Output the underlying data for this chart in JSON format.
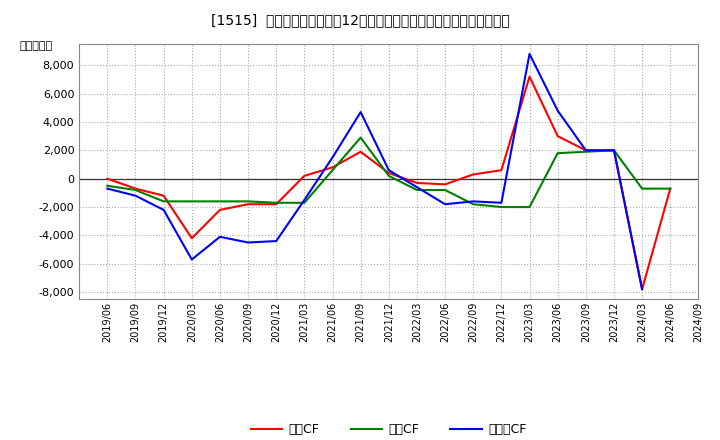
{
  "title": "[1515]  キャッシュフローの12か月移動合計の対前年同期増減額の推移",
  "ylabel": "（百万円）",
  "legend_labels": [
    "営業CF",
    "投資CF",
    "フリーCF"
  ],
  "line_colors": [
    "#ff0000",
    "#008000",
    "#0000ff"
  ],
  "background_color": "#ffffff",
  "plot_bg_color": "#ffffff",
  "ylim": [
    -8500,
    9500
  ],
  "yticks": [
    -8000,
    -6000,
    -4000,
    -2000,
    0,
    2000,
    4000,
    6000,
    8000
  ],
  "x_labels": [
    "2019/06",
    "2019/09",
    "2019/12",
    "2020/03",
    "2020/06",
    "2020/09",
    "2020/12",
    "2021/03",
    "2021/06",
    "2021/09",
    "2021/12",
    "2022/03",
    "2022/06",
    "2022/09",
    "2022/12",
    "2023/03",
    "2023/06",
    "2023/09",
    "2023/12",
    "2024/03",
    "2024/06",
    "2024/09"
  ],
  "operating_cf": [
    0,
    -700,
    -1200,
    -4200,
    -2200,
    -1800,
    -1800,
    200,
    800,
    1900,
    400,
    -300,
    -400,
    300,
    600,
    7200,
    3000,
    2000,
    2000,
    -7800,
    -700,
    null
  ],
  "investing_cf": [
    -500,
    -800,
    -1600,
    -1600,
    -1600,
    -1600,
    -1700,
    -1700,
    600,
    2900,
    200,
    -800,
    -800,
    -1800,
    -2000,
    -2000,
    1800,
    1900,
    2000,
    -700,
    -700,
    null
  ],
  "free_cf": [
    -700,
    -1200,
    -2200,
    -5700,
    -4100,
    -4500,
    -4400,
    -1500,
    1500,
    4700,
    600,
    -600,
    -1800,
    -1600,
    -1700,
    8800,
    4800,
    2000,
    2000,
    -7800,
    null,
    null
  ]
}
